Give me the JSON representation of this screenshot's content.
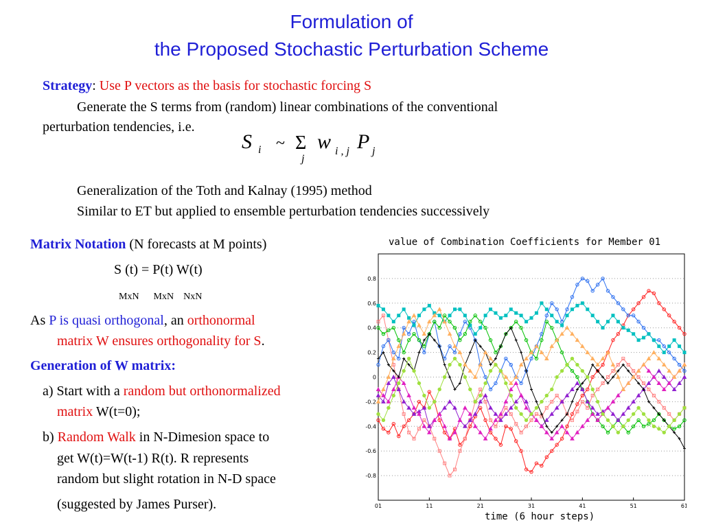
{
  "title_line1": "Formulation of",
  "title_line2": "the Proposed Stochastic Perturbation Scheme",
  "strategy_label": "Strategy",
  "strategy_colon": ":  ",
  "strategy_text": "Use P vectors as the basis for stochastic forcing S",
  "generate_line1": "Generate the S terms from (random) linear combinations of the conventional",
  "generate_line2": "perturbation tendencies, i.e.",
  "formula": {
    "S": "S",
    "i": "i",
    "tilde": "~",
    "sigma": "Σ",
    "j": "j",
    "w": "w",
    "ij": "i , j",
    "P": "P",
    "pj": "j"
  },
  "generalization": "Generalization of the Toth and Kalnay (1995) method",
  "similar": "Similar to ET but applied to ensemble perturbation tendencies successively",
  "matrix_notation_label": "Matrix Notation",
  "matrix_notation_text": "  (N forecasts at M points)",
  "matrix_eq": "S (t) = P(t) W(t)",
  "dims": "MxN      MxN    NxN",
  "as_prefix": "As ",
  "as_p": "P is quasi orthogonal",
  "as_mid": ",  an ",
  "as_ortho": "orthonormal",
  "as_line2_red": "matrix W ensures orthogonality for S",
  "as_line2_end": ".",
  "gen_w_label": "Generation of W matrix:",
  "a_prefix": "a) Start with a ",
  "a_red": "random but orthonormalized",
  "a_line2_red": "matrix",
  "a_line2_end": " W(t=0);",
  "b_prefix": "b) ",
  "b_red": "Random Walk",
  "b_rest": " in N-Dimesion space to",
  "b_line2": "get W(t)=W(t-1) R(t). R represents",
  "b_line3": "random but slight rotation in N-D space",
  "b_line4": "(suggested by James Purser).",
  "chart_data": {
    "type": "line",
    "title": "value of Combination Coefficients for Member 01",
    "xlabel": "time (6 hour steps)",
    "ylabel": "",
    "xlim": [
      1,
      61
    ],
    "ylim": [
      -1,
      1
    ],
    "x_ticks": [
      "01",
      "11",
      "21",
      "31",
      "41",
      "51",
      "61"
    ],
    "y_ticks": [
      "0.8",
      "0.6",
      "0.4",
      "0.2",
      "0",
      "-0.2",
      "-0.4",
      "-0.6",
      "-0.8"
    ],
    "grid": "dotted horizontal",
    "series": [
      {
        "color": "#ff2020",
        "values": [
          -0.35,
          -0.42,
          -0.45,
          -0.38,
          -0.48,
          -0.4,
          -0.35,
          -0.3,
          -0.2,
          -0.25,
          -0.12,
          -0.2,
          -0.35,
          -0.45,
          -0.5,
          -0.42,
          -0.55,
          -0.5,
          -0.4,
          -0.32,
          -0.25,
          -0.35,
          -0.45,
          -0.5,
          -0.55,
          -0.4,
          -0.42,
          -0.52,
          -0.6,
          -0.75,
          -0.77,
          -0.7,
          -0.72,
          -0.65,
          -0.6,
          -0.55,
          -0.5,
          -0.4,
          -0.3,
          -0.22,
          -0.15,
          -0.1,
          0.0,
          0.05,
          0.1,
          0.2,
          0.3,
          0.35,
          0.42,
          0.5,
          0.55,
          0.6,
          0.65,
          0.7,
          0.68,
          0.6,
          0.55,
          0.5,
          0.45,
          0.4,
          0.35
        ]
      },
      {
        "color": "#ff8080",
        "values": [
          0.45,
          0.5,
          0.3,
          0.1,
          -0.1,
          -0.3,
          -0.45,
          -0.5,
          -0.42,
          -0.35,
          -0.4,
          -0.5,
          -0.6,
          -0.7,
          -0.8,
          -0.75,
          -0.6,
          -0.5,
          -0.35,
          -0.2,
          -0.1,
          -0.2,
          -0.35,
          -0.4,
          -0.32,
          -0.25,
          -0.3,
          -0.38,
          -0.45,
          -0.4,
          -0.35,
          -0.3,
          -0.32,
          -0.25,
          -0.2,
          -0.15,
          -0.2,
          -0.3,
          -0.35,
          -0.28,
          -0.2,
          -0.25,
          -0.15,
          -0.1,
          -0.05,
          0.0,
          0.05,
          0.1,
          0.15,
          0.1,
          0.05,
          0.0,
          -0.05,
          -0.1,
          -0.15,
          -0.2,
          -0.25,
          -0.3,
          -0.35,
          -0.3,
          -0.25
        ]
      },
      {
        "color": "#2a6ef0",
        "values": [
          0.1,
          0.25,
          0.3,
          0.2,
          0.15,
          0.4,
          0.35,
          0.45,
          0.3,
          0.2,
          0.35,
          0.45,
          0.25,
          0.15,
          0.25,
          0.2,
          0.35,
          0.45,
          0.4,
          0.3,
          0.1,
          0.0,
          -0.1,
          -0.05,
          0.05,
          0.15,
          0.1,
          0.0,
          -0.05,
          0.05,
          0.15,
          0.25,
          0.35,
          0.5,
          0.6,
          0.55,
          0.45,
          0.55,
          0.65,
          0.75,
          0.8,
          0.78,
          0.7,
          0.75,
          0.8,
          0.7,
          0.65,
          0.6,
          0.55,
          0.5,
          0.5,
          0.45,
          0.4,
          0.35,
          0.3,
          0.3,
          0.25,
          0.2,
          0.15,
          0.1,
          0.05
        ]
      },
      {
        "color": "#00c0c0",
        "values": [
          0.58,
          0.55,
          0.5,
          0.45,
          0.5,
          0.55,
          0.48,
          0.42,
          0.5,
          0.55,
          0.58,
          0.52,
          0.5,
          0.45,
          0.5,
          0.55,
          0.55,
          0.5,
          0.42,
          0.35,
          0.4,
          0.5,
          0.55,
          0.52,
          0.48,
          0.5,
          0.55,
          0.52,
          0.5,
          0.45,
          0.48,
          0.52,
          0.6,
          0.55,
          0.5,
          0.45,
          0.42,
          0.5,
          0.55,
          0.58,
          0.6,
          0.55,
          0.5,
          0.45,
          0.4,
          0.45,
          0.5,
          0.45,
          0.4,
          0.38,
          0.35,
          0.3,
          0.32,
          0.35,
          0.3,
          0.25,
          0.2,
          0.25,
          0.3,
          0.25,
          0.2
        ]
      },
      {
        "color": "#00c000",
        "values": [
          0.4,
          0.35,
          0.38,
          0.4,
          0.3,
          0.2,
          0.3,
          0.35,
          0.3,
          0.25,
          0.35,
          0.45,
          0.4,
          0.5,
          0.45,
          0.4,
          0.3,
          0.35,
          0.45,
          0.5,
          0.45,
          0.4,
          0.3,
          0.2,
          0.25,
          0.35,
          0.4,
          0.45,
          0.4,
          0.3,
          0.2,
          0.15,
          0.3,
          0.45,
          0.4,
          0.3,
          0.2,
          0.1,
          0.05,
          0.0,
          -0.1,
          -0.2,
          -0.3,
          -0.35,
          -0.4,
          -0.45,
          -0.4,
          -0.35,
          -0.4,
          -0.45,
          -0.4,
          -0.35,
          -0.4,
          -0.38,
          -0.35,
          -0.3,
          -0.35,
          -0.4,
          -0.42,
          -0.4,
          -0.35
        ]
      },
      {
        "color": "#9020d0",
        "values": [
          -0.15,
          -0.2,
          -0.05,
          0.0,
          -0.1,
          -0.2,
          -0.25,
          -0.3,
          -0.28,
          -0.25,
          -0.4,
          -0.35,
          -0.3,
          -0.25,
          -0.2,
          -0.25,
          -0.35,
          -0.4,
          -0.35,
          -0.3,
          -0.2,
          -0.15,
          -0.25,
          -0.3,
          -0.35,
          -0.3,
          -0.25,
          -0.2,
          -0.15,
          -0.2,
          -0.3,
          -0.35,
          -0.4,
          -0.35,
          -0.3,
          -0.25,
          -0.2,
          -0.15,
          -0.1,
          -0.05,
          -0.1,
          -0.2,
          -0.25,
          -0.3,
          -0.28,
          -0.25,
          -0.3,
          -0.35,
          -0.3,
          -0.25,
          -0.2,
          -0.15,
          -0.1,
          -0.05,
          0.0,
          0.05,
          0.0,
          -0.05,
          -0.1,
          -0.05,
          0.0
        ]
      },
      {
        "color": "#e020c0",
        "values": [
          -0.1,
          -0.15,
          -0.2,
          -0.1,
          0.0,
          -0.05,
          -0.15,
          -0.25,
          -0.3,
          -0.4,
          -0.45,
          -0.35,
          -0.3,
          -0.4,
          -0.5,
          -0.45,
          -0.35,
          -0.25,
          -0.3,
          -0.4,
          -0.45,
          -0.5,
          -0.42,
          -0.35,
          -0.3,
          -0.2,
          -0.1,
          -0.05,
          -0.15,
          -0.25,
          -0.3,
          -0.35,
          -0.4,
          -0.45,
          -0.5,
          -0.45,
          -0.4,
          -0.45,
          -0.5,
          -0.45,
          -0.4,
          -0.35,
          -0.3,
          -0.35,
          -0.3,
          -0.25,
          -0.2,
          -0.15,
          -0.1,
          -0.05,
          0.0,
          0.05,
          0.1,
          0.05,
          0.0,
          -0.05,
          -0.1,
          -0.05,
          0.0,
          0.05,
          0.1
        ]
      },
      {
        "color": "#000000",
        "values": [
          0.15,
          0.2,
          0.1,
          0.05,
          0.0,
          0.15,
          0.1,
          0.05,
          0.2,
          0.3,
          0.35,
          0.3,
          0.25,
          0.1,
          0.0,
          -0.1,
          -0.05,
          0.1,
          0.2,
          0.3,
          0.25,
          0.2,
          0.1,
          0.15,
          0.25,
          0.35,
          0.4,
          0.3,
          0.2,
          0.05,
          -0.1,
          -0.2,
          -0.3,
          -0.4,
          -0.45,
          -0.4,
          -0.35,
          -0.3,
          -0.2,
          -0.1,
          -0.05,
          0.0,
          0.1,
          0.05,
          0.0,
          -0.05,
          0.0,
          0.05,
          0.1,
          0.05,
          0.0,
          -0.05,
          -0.1,
          -0.2,
          -0.25,
          -0.3,
          -0.35,
          -0.4,
          -0.45,
          -0.5,
          -0.58
        ]
      },
      {
        "color": "#ffb060",
        "values": [
          -0.2,
          -0.1,
          0.0,
          0.15,
          0.25,
          0.35,
          0.45,
          0.5,
          0.42,
          0.35,
          0.45,
          0.5,
          0.55,
          0.45,
          0.35,
          0.25,
          0.2,
          0.1,
          0.05,
          0.0,
          0.1,
          0.2,
          0.15,
          0.1,
          0.05,
          0.0,
          -0.05,
          0.0,
          0.1,
          0.15,
          0.2,
          0.25,
          0.2,
          0.15,
          0.25,
          0.3,
          0.35,
          0.4,
          0.35,
          0.3,
          0.25,
          0.2,
          0.15,
          0.1,
          0.15,
          0.2,
          0.1,
          0.0,
          -0.1,
          -0.05,
          0.0,
          0.05,
          0.1,
          0.15,
          0.2,
          0.15,
          0.1,
          0.05,
          0.0,
          0.05,
          0.1
        ]
      },
      {
        "color": "#a0e040",
        "values": [
          -0.3,
          -0.35,
          -0.25,
          -0.15,
          -0.05,
          0.05,
          0.15,
          0.05,
          -0.05,
          -0.15,
          -0.25,
          -0.2,
          -0.1,
          0.0,
          0.1,
          0.15,
          0.1,
          0.0,
          -0.1,
          -0.2,
          -0.15,
          -0.05,
          0.05,
          0.1,
          0.05,
          -0.05,
          -0.15,
          -0.25,
          -0.3,
          -0.35,
          -0.3,
          -0.25,
          -0.2,
          -0.15,
          -0.1,
          0.0,
          0.05,
          0.1,
          0.15,
          0.1,
          0.05,
          0.0,
          -0.1,
          -0.2,
          -0.3,
          -0.35,
          -0.4,
          -0.45,
          -0.4,
          -0.35,
          -0.3,
          -0.25,
          -0.3,
          -0.35,
          -0.4,
          -0.42,
          -0.45,
          -0.4,
          -0.35,
          -0.3,
          -0.25
        ]
      }
    ]
  }
}
